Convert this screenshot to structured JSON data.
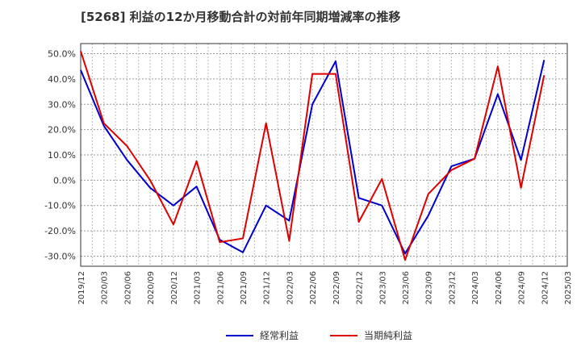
{
  "chart_data": {
    "type": "line",
    "title": "[5268]  利益の12か月移動合計の対前年同期増減率の推移",
    "xlabel": "",
    "ylabel": "",
    "ylim": [
      -34,
      54
    ],
    "yticks": [
      50,
      40,
      30,
      20,
      10,
      0,
      -10,
      -20,
      -30
    ],
    "ytick_labels": [
      "50.0%",
      "40.0%",
      "30.0%",
      "20.0%",
      "10.0%",
      "0.0%",
      "-10.0%",
      "-20.0%",
      "-30.0%"
    ],
    "categories": [
      "2019/12",
      "2020/03",
      "2020/06",
      "2020/09",
      "2020/12",
      "2021/03",
      "2021/06",
      "2021/09",
      "2021/12",
      "2022/03",
      "2022/06",
      "2022/09",
      "2022/12",
      "2023/03",
      "2023/06",
      "2023/09",
      "2023/12",
      "2024/03",
      "2024/06",
      "2024/09",
      "2024/12",
      "2025/03"
    ],
    "grid": true,
    "legend_position": "bottom",
    "series": [
      {
        "name": "経常利益",
        "color": "#0000cc",
        "values": [
          43.5,
          21.5,
          8.0,
          -3.0,
          -10.0,
          -2.5,
          -23.5,
          -28.5,
          -10.0,
          -16.0,
          30.0,
          47.0,
          -7.0,
          -10.0,
          -29.0,
          -14.0,
          5.5,
          8.5,
          34.0,
          8.0,
          47.5,
          null
        ]
      },
      {
        "name": "当期純利益",
        "color": "#dd0000",
        "values": [
          51.0,
          22.5,
          13.5,
          0.0,
          -17.5,
          7.5,
          -24.5,
          -23.0,
          22.5,
          -24.0,
          42.0,
          42.0,
          -16.5,
          0.5,
          -31.5,
          -5.5,
          4.0,
          8.5,
          45.0,
          -3.0,
          41.5,
          null
        ]
      }
    ]
  }
}
